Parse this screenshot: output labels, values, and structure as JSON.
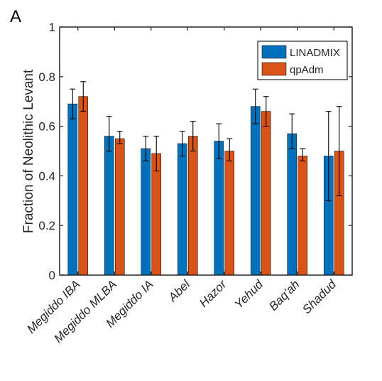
{
  "panel_label": "A",
  "chart_data": {
    "type": "bar",
    "categories": [
      "Megiddo IBA",
      "Megiddo MLBA",
      "Megiddo IA",
      "Abel",
      "Hazor",
      "Yehud",
      "Baq'ah",
      "Shadud"
    ],
    "series": [
      {
        "name": "LINADMIX",
        "color": "#0072BD",
        "values": [
          0.69,
          0.56,
          0.51,
          0.53,
          0.54,
          0.68,
          0.57,
          0.48
        ],
        "err_low": [
          0.63,
          0.5,
          0.46,
          0.48,
          0.47,
          0.61,
          0.51,
          0.3
        ],
        "err_high": [
          0.75,
          0.64,
          0.56,
          0.58,
          0.61,
          0.75,
          0.65,
          0.66
        ]
      },
      {
        "name": "qpAdm",
        "color": "#D95319",
        "values": [
          0.72,
          0.55,
          0.49,
          0.56,
          0.5,
          0.66,
          0.48,
          0.5
        ],
        "err_low": [
          0.66,
          0.53,
          0.42,
          0.5,
          0.46,
          0.6,
          0.46,
          0.32
        ],
        "err_high": [
          0.78,
          0.58,
          0.56,
          0.62,
          0.55,
          0.72,
          0.51,
          0.68
        ]
      }
    ],
    "ylabel": "Fraction of Neolithic Levant",
    "xlabel": "",
    "ylim": [
      0,
      1
    ],
    "yticks": [
      "0",
      "0.2",
      "0.4",
      "0.6",
      "0.8",
      "1"
    ],
    "legend_position": "top-right",
    "grid": false
  }
}
